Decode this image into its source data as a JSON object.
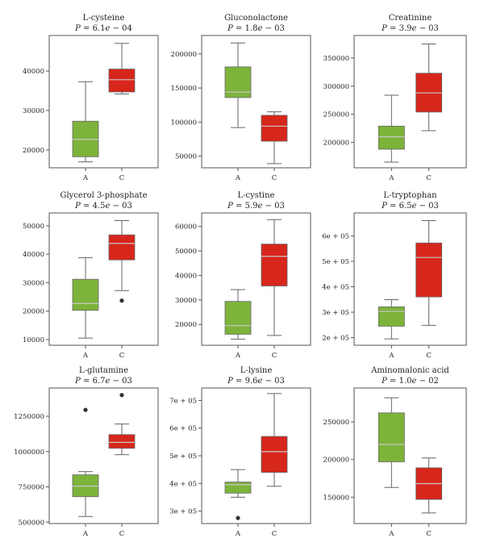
{
  "colors": {
    "A": "#7db33a",
    "C": "#d7261b",
    "median": "#c8c8c8",
    "frame": "#555555",
    "whisker": "#666666"
  },
  "chart_data": [
    {
      "type": "box",
      "title": "L-cysteine",
      "subtitle": "P = 6.1e − 04",
      "ylim": [
        15500,
        49000
      ],
      "yticks": [
        20000,
        30000,
        40000
      ],
      "ytick_labels": [
        "20000",
        "30000",
        "40000"
      ],
      "categories": [
        "A",
        "C"
      ],
      "boxes": [
        {
          "group": "A",
          "whisker_low": 17000,
          "q1": 18300,
          "median": 22700,
          "q3": 27300,
          "whisker_high": 37300,
          "outliers": []
        },
        {
          "group": "C",
          "whisker_low": 34200,
          "q1": 34700,
          "median": 37800,
          "q3": 40500,
          "whisker_high": 47000,
          "outliers": []
        }
      ]
    },
    {
      "type": "box",
      "title": "Gluconolactone",
      "subtitle": "P = 1.8e − 03",
      "ylim": [
        33000,
        227000
      ],
      "yticks": [
        50000,
        100000,
        150000,
        200000
      ],
      "ytick_labels": [
        "50000",
        "100000",
        "150000",
        "200000"
      ],
      "categories": [
        "A",
        "C"
      ],
      "boxes": [
        {
          "group": "A",
          "whisker_low": 92000,
          "q1": 136000,
          "median": 144000,
          "q3": 181000,
          "whisker_high": 216000,
          "outliers": []
        },
        {
          "group": "C",
          "whisker_low": 39000,
          "q1": 72000,
          "median": 94000,
          "q3": 110000,
          "whisker_high": 115000,
          "outliers": []
        }
      ]
    },
    {
      "type": "box",
      "title": "Creatinine",
      "subtitle": "P = 3.9e − 03",
      "ylim": [
        155000,
        390000
      ],
      "yticks": [
        200000,
        250000,
        300000,
        350000
      ],
      "ytick_labels": [
        "200000",
        "250000",
        "300000",
        "350000"
      ],
      "categories": [
        "A",
        "C"
      ],
      "boxes": [
        {
          "group": "A",
          "whisker_low": 165000,
          "q1": 188000,
          "median": 210000,
          "q3": 229000,
          "whisker_high": 284000,
          "outliers": []
        },
        {
          "group": "C",
          "whisker_low": 221000,
          "q1": 254000,
          "median": 288000,
          "q3": 323000,
          "whisker_high": 375000,
          "outliers": []
        }
      ]
    },
    {
      "type": "box",
      "title": "Glycerol 3-phosphate",
      "subtitle": "P = 4.5e − 03",
      "ylim": [
        8000,
        54500
      ],
      "yticks": [
        10000,
        20000,
        30000,
        40000,
        50000
      ],
      "ytick_labels": [
        "10000",
        "20000",
        "30000",
        "40000",
        "50000"
      ],
      "categories": [
        "A",
        "C"
      ],
      "boxes": [
        {
          "group": "A",
          "whisker_low": 10500,
          "q1": 20300,
          "median": 22700,
          "q3": 31200,
          "whisker_high": 38800,
          "outliers": []
        },
        {
          "group": "C",
          "whisker_low": 27200,
          "q1": 38000,
          "median": 43800,
          "q3": 46800,
          "whisker_high": 51800,
          "outliers": [
            23700
          ]
        }
      ]
    },
    {
      "type": "box",
      "title": "L-cystine",
      "subtitle": "P = 5.9e − 03",
      "ylim": [
        11500,
        65500
      ],
      "yticks": [
        20000,
        30000,
        40000,
        50000,
        60000
      ],
      "ytick_labels": [
        "20000",
        "30000",
        "40000",
        "50000",
        "60000"
      ],
      "categories": [
        "A",
        "C"
      ],
      "boxes": [
        {
          "group": "A",
          "whisker_low": 14000,
          "q1": 16000,
          "median": 19500,
          "q3": 29400,
          "whisker_high": 34200,
          "outliers": []
        },
        {
          "group": "C",
          "whisker_low": 15500,
          "q1": 35700,
          "median": 47800,
          "q3": 52800,
          "whisker_high": 62800,
          "outliers": []
        }
      ]
    },
    {
      "type": "box",
      "title": "L-tryptophan",
      "subtitle": "P = 6.5e − 03",
      "ylim": [
        170000,
        690000
      ],
      "yticks": [
        200000,
        300000,
        400000,
        500000,
        600000
      ],
      "ytick_labels": [
        "2e + 05",
        "3e + 05",
        "4e + 05",
        "5e + 05",
        "6e + 05"
      ],
      "categories": [
        "A",
        "C"
      ],
      "boxes": [
        {
          "group": "A",
          "whisker_low": 195000,
          "q1": 245000,
          "median": 303000,
          "q3": 321000,
          "whisker_high": 349000,
          "outliers": []
        },
        {
          "group": "C",
          "whisker_low": 248000,
          "q1": 360000,
          "median": 515000,
          "q3": 572000,
          "whisker_high": 660000,
          "outliers": []
        }
      ]
    },
    {
      "type": "box",
      "title": "L-glutamine",
      "subtitle": "P = 6.7e − 03",
      "ylim": [
        490000,
        1450000
      ],
      "yticks": [
        500000,
        750000,
        1000000,
        1250000
      ],
      "ytick_labels": [
        "500000",
        "750000",
        "1000000",
        "1250000"
      ],
      "categories": [
        "A",
        "C"
      ],
      "boxes": [
        {
          "group": "A",
          "whisker_low": 540000,
          "q1": 680000,
          "median": 755000,
          "q3": 835000,
          "whisker_high": 858000,
          "outliers": [
            1295000
          ]
        },
        {
          "group": "C",
          "whisker_low": 978000,
          "q1": 1023000,
          "median": 1065000,
          "q3": 1120000,
          "whisker_high": 1195000,
          "outliers": [
            1400000
          ]
        }
      ]
    },
    {
      "type": "box",
      "title": "L-lysine",
      "subtitle": "P = 9.6e − 03",
      "ylim": [
        255000,
        745000
      ],
      "yticks": [
        300000,
        400000,
        500000,
        600000,
        700000
      ],
      "ytick_labels": [
        "3e + 05",
        "4e + 05",
        "5e + 05",
        "6e + 05",
        "7e + 05"
      ],
      "categories": [
        "A",
        "C"
      ],
      "boxes": [
        {
          "group": "A",
          "whisker_low": 350000,
          "q1": 365000,
          "median": 395000,
          "q3": 405000,
          "whisker_high": 450000,
          "outliers": [
            275000
          ]
        },
        {
          "group": "C",
          "whisker_low": 390000,
          "q1": 440000,
          "median": 515000,
          "q3": 570000,
          "whisker_high": 725000,
          "outliers": []
        }
      ]
    },
    {
      "type": "box",
      "title": "Aminomalonic acid",
      "subtitle": "P = 1.0e − 02",
      "ylim": [
        115000,
        295000
      ],
      "yticks": [
        150000,
        200000,
        250000
      ],
      "ytick_labels": [
        "150000",
        "200000",
        "250000"
      ],
      "categories": [
        "A",
        "C"
      ],
      "boxes": [
        {
          "group": "A",
          "whisker_low": 163000,
          "q1": 197000,
          "median": 220000,
          "q3": 262000,
          "whisker_high": 282000,
          "outliers": []
        },
        {
          "group": "C",
          "whisker_low": 129000,
          "q1": 147000,
          "median": 168000,
          "q3": 189000,
          "whisker_high": 202000,
          "outliers": []
        }
      ]
    }
  ]
}
